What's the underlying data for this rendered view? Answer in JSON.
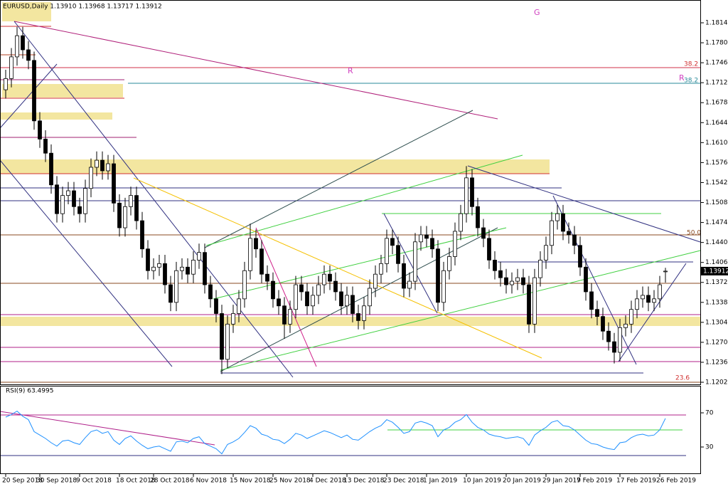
{
  "chart_data": [
    {
      "type": "candlestick",
      "title": "EURUSD,Daily  1.13910 1.13968 1.13717 1.13912",
      "categories": [
        "20 Sep 2018",
        null,
        null,
        null,
        null,
        null,
        "30 Sep 2018",
        null,
        null,
        null,
        null,
        null,
        null,
        "9 Oct 2018",
        null,
        null,
        null,
        null,
        null,
        null,
        "18 Oct 2018",
        null,
        null,
        null,
        null,
        null,
        "28 Oct 2018",
        null,
        null,
        null,
        null,
        null,
        null,
        "6 Nov 2018",
        null,
        null,
        null,
        null,
        null,
        null,
        "15 Nov 2018",
        null,
        null,
        null,
        null,
        null,
        null,
        "25 Nov 2018",
        null,
        null,
        null,
        null,
        null,
        null,
        "4 Dec 2018",
        null,
        null,
        null,
        null,
        null,
        "13 Dec 2018",
        null,
        null,
        null,
        null,
        null,
        null,
        "23 Dec 2018",
        null,
        null,
        null,
        null,
        null,
        null,
        "1 Jan 2019",
        null,
        null,
        null,
        null,
        null,
        null,
        "10 Jan 2019",
        null,
        null,
        null,
        null,
        null,
        null,
        "20 Jan 2019",
        null,
        null,
        null,
        null,
        null,
        null,
        "29 Jan 2019",
        null,
        null,
        null,
        null,
        null,
        "7 Feb 2019",
        null,
        null,
        null,
        null,
        null,
        null,
        "17 Feb 2019",
        null,
        null,
        null,
        null,
        null,
        null,
        "26 Feb 2019",
        null
      ],
      "open": [
        1.17,
        1.1719,
        1.1756,
        1.1792,
        1.1768,
        1.175,
        1.1647,
        1.1616,
        1.1592,
        1.1538,
        1.1489,
        1.152,
        1.1528,
        1.1501,
        1.1489,
        1.1532,
        1.1568,
        1.158,
        1.1562,
        1.1574,
        1.1507,
        1.1465,
        1.1501,
        1.152,
        1.1477,
        1.1429,
        1.1392,
        1.1398,
        1.1404,
        1.1368,
        1.1338,
        1.1392,
        1.1398,
        1.1386,
        1.141,
        1.1423,
        1.1368,
        1.1344,
        1.1319,
        1.1241,
        1.1301,
        1.1319,
        1.1344,
        1.1392,
        1.1447,
        1.1429,
        1.1386,
        1.1374,
        1.1344,
        1.1332,
        1.1301,
        1.1326,
        1.1368,
        1.1356,
        1.1332,
        1.135,
        1.1368,
        1.1386,
        1.1374,
        1.1356,
        1.1332,
        1.135,
        1.1319,
        1.1307,
        1.1332,
        1.1362,
        1.1386,
        1.1404,
        1.1447,
        1.1435,
        1.1404,
        1.1362,
        1.1374,
        1.1441,
        1.1453,
        1.1447,
        1.1429,
        1.1338,
        1.1392,
        1.1416,
        1.1459,
        1.1489,
        1.155,
        1.1501,
        1.1465,
        1.1447,
        1.141,
        1.1392,
        1.138,
        1.1368,
        1.1374,
        1.138,
        1.1368,
        1.1301,
        1.138,
        1.141,
        1.1435,
        1.1477,
        1.1489,
        1.1459,
        1.1453,
        1.1435,
        1.1398,
        1.1356,
        1.1326,
        1.1314,
        1.1289,
        1.1271,
        1.1253,
        1.1295,
        1.1301,
        1.1326,
        1.1344,
        1.135,
        1.1338,
        1.1344,
        1.1391
      ],
      "high": [
        1.1734,
        1.1771,
        1.1807,
        1.1807,
        1.1783,
        1.1765,
        1.1662,
        1.1631,
        1.1607,
        1.1553,
        1.1535,
        1.1543,
        1.1543,
        1.1516,
        1.1547,
        1.1583,
        1.1595,
        1.1595,
        1.1589,
        1.1589,
        1.1522,
        1.1516,
        1.1535,
        1.1535,
        1.1492,
        1.1444,
        1.1413,
        1.1419,
        1.1419,
        1.1383,
        1.1407,
        1.1413,
        1.1413,
        1.1425,
        1.1438,
        1.1438,
        1.1383,
        1.1359,
        1.1334,
        1.1316,
        1.1334,
        1.1359,
        1.1407,
        1.1472,
        1.1462,
        1.1444,
        1.1401,
        1.1389,
        1.1359,
        1.1347,
        1.1341,
        1.1383,
        1.1383,
        1.1371,
        1.1365,
        1.1383,
        1.1401,
        1.1401,
        1.1389,
        1.1371,
        1.1365,
        1.1365,
        1.1334,
        1.1347,
        1.1377,
        1.1401,
        1.1419,
        1.1462,
        1.1462,
        1.145,
        1.1419,
        1.1389,
        1.1456,
        1.1468,
        1.1468,
        1.1462,
        1.1444,
        1.1407,
        1.1431,
        1.1474,
        1.1504,
        1.157,
        1.1565,
        1.1516,
        1.148,
        1.1462,
        1.1425,
        1.1407,
        1.1395,
        1.1389,
        1.1395,
        1.1395,
        1.1383,
        1.1395,
        1.1425,
        1.145,
        1.1492,
        1.1504,
        1.1504,
        1.1474,
        1.1468,
        1.145,
        1.1413,
        1.1371,
        1.1341,
        1.1329,
        1.1304,
        1.1286,
        1.131,
        1.1316,
        1.1341,
        1.1359,
        1.1365,
        1.1365,
        1.1359,
        1.1383,
        1.13968
      ],
      "low": [
        1.1685,
        1.1704,
        1.1741,
        1.1753,
        1.1735,
        1.1632,
        1.1601,
        1.1577,
        1.1523,
        1.1474,
        1.1474,
        1.1505,
        1.1486,
        1.1474,
        1.1474,
        1.1517,
        1.1553,
        1.1547,
        1.1547,
        1.1492,
        1.145,
        1.145,
        1.1486,
        1.1462,
        1.1414,
        1.1377,
        1.1377,
        1.1383,
        1.1353,
        1.1323,
        1.1323,
        1.1377,
        1.1371,
        1.1371,
        1.1395,
        1.1353,
        1.1329,
        1.1304,
        1.1216,
        1.1226,
        1.1286,
        1.1304,
        1.1329,
        1.1377,
        1.1414,
        1.1371,
        1.1359,
        1.1329,
        1.1317,
        1.1276,
        1.1286,
        1.1311,
        1.1341,
        1.1317,
        1.1317,
        1.1335,
        1.1353,
        1.1359,
        1.1341,
        1.1317,
        1.1317,
        1.1304,
        1.1292,
        1.1292,
        1.1317,
        1.1347,
        1.1371,
        1.1389,
        1.142,
        1.1389,
        1.1347,
        1.1347,
        1.1359,
        1.1426,
        1.1432,
        1.1414,
        1.1323,
        1.1323,
        1.1377,
        1.1401,
        1.1444,
        1.1474,
        1.1486,
        1.145,
        1.1432,
        1.1395,
        1.1377,
        1.1365,
        1.1353,
        1.1353,
        1.1359,
        1.1353,
        1.1286,
        1.1286,
        1.1365,
        1.1395,
        1.142,
        1.1462,
        1.1444,
        1.1438,
        1.142,
        1.1383,
        1.1341,
        1.1311,
        1.1299,
        1.1274,
        1.1256,
        1.1234,
        1.1238,
        1.128,
        1.1286,
        1.1311,
        1.1329,
        1.1323,
        1.1323,
        1.1329,
        1.13717
      ],
      "close": [
        1.1719,
        1.1756,
        1.1792,
        1.1768,
        1.175,
        1.1647,
        1.1616,
        1.1592,
        1.1538,
        1.1489,
        1.152,
        1.1528,
        1.1501,
        1.1489,
        1.1532,
        1.1568,
        1.158,
        1.1562,
        1.1574,
        1.1507,
        1.1465,
        1.1501,
        1.152,
        1.1477,
        1.1429,
        1.1392,
        1.1398,
        1.1404,
        1.1368,
        1.1338,
        1.1392,
        1.1398,
        1.1386,
        1.141,
        1.1423,
        1.1368,
        1.1344,
        1.1319,
        1.1241,
        1.1301,
        1.1319,
        1.1344,
        1.1392,
        1.1447,
        1.1429,
        1.1386,
        1.1374,
        1.1344,
        1.1332,
        1.1301,
        1.1326,
        1.1368,
        1.1356,
        1.1332,
        1.135,
        1.1368,
        1.1386,
        1.1374,
        1.1356,
        1.1332,
        1.135,
        1.1319,
        1.1307,
        1.1332,
        1.1362,
        1.1386,
        1.1404,
        1.1447,
        1.1435,
        1.1404,
        1.1362,
        1.1374,
        1.1441,
        1.1453,
        1.1447,
        1.1429,
        1.1338,
        1.1392,
        1.1416,
        1.1459,
        1.1489,
        1.155,
        1.1501,
        1.1465,
        1.1447,
        1.141,
        1.1392,
        1.138,
        1.1368,
        1.1374,
        1.138,
        1.1368,
        1.1301,
        1.138,
        1.141,
        1.1435,
        1.1477,
        1.1489,
        1.1459,
        1.1453,
        1.1435,
        1.1398,
        1.1356,
        1.1326,
        1.1314,
        1.1289,
        1.1271,
        1.1253,
        1.1295,
        1.1301,
        1.1326,
        1.1344,
        1.135,
        1.1338,
        1.1344,
        1.1368,
        1.13912
      ],
      "ylim": [
        1.11984,
        1.18528
      ],
      "yticks": [
        {
          "value": 1.1814,
          "label": "1.18140"
        },
        {
          "value": 1.178,
          "label": "1.17800"
        },
        {
          "value": 1.1746,
          "label": "1.17460"
        },
        {
          "value": 1.1712,
          "label": "1.17120"
        },
        {
          "value": 1.1678,
          "label": "1.16780"
        },
        {
          "value": 1.1644,
          "label": "1.16440"
        },
        {
          "value": 1.161,
          "label": "1.16100"
        },
        {
          "value": 1.1576,
          "label": "1.15760"
        },
        {
          "value": 1.1542,
          "label": "1.15420"
        },
        {
          "value": 1.1508,
          "label": "1.15080"
        },
        {
          "value": 1.1474,
          "label": "1.14740"
        },
        {
          "value": 1.144,
          "label": "1.14400"
        },
        {
          "value": 1.1406,
          "label": "1.14060"
        },
        {
          "value": 1.1372,
          "label": "1.13720"
        },
        {
          "value": 1.1338,
          "label": "1.13380"
        },
        {
          "value": 1.1304,
          "label": "1.13040"
        },
        {
          "value": 1.127,
          "label": "1.12700"
        },
        {
          "value": 1.1236,
          "label": "1.12360"
        },
        {
          "value": 1.1202,
          "label": "1.12020"
        }
      ],
      "annotations": [
        "38.2",
        "38.2",
        "50.0",
        "23.6",
        "R",
        "R",
        "G"
      ]
    },
    {
      "type": "line",
      "title": "RSI(9) 63.4995",
      "color": "#1e90ff",
      "values": [
        65,
        68,
        72,
        66,
        62,
        48,
        44,
        40,
        35,
        31,
        37,
        38,
        35,
        33,
        41,
        48,
        50,
        46,
        48,
        38,
        33,
        40,
        43,
        37,
        32,
        28,
        30,
        31,
        28,
        25,
        36,
        37,
        35,
        40,
        42,
        34,
        31,
        28,
        22,
        33,
        36,
        40,
        47,
        55,
        52,
        45,
        43,
        39,
        38,
        34,
        39,
        46,
        44,
        40,
        43,
        46,
        49,
        47,
        44,
        41,
        44,
        39,
        38,
        43,
        48,
        52,
        55,
        62,
        59,
        53,
        46,
        48,
        58,
        60,
        58,
        55,
        42,
        50,
        53,
        59,
        62,
        68,
        59,
        53,
        50,
        45,
        43,
        42,
        40,
        41,
        42,
        40,
        32,
        44,
        49,
        53,
        59,
        61,
        55,
        54,
        50,
        44,
        38,
        34,
        33,
        30,
        28,
        27,
        35,
        36,
        41,
        44,
        45,
        43,
        44,
        50,
        63.4995
      ],
      "ylim": [
        0,
        100
      ],
      "yticks": [
        70,
        30
      ]
    }
  ]
}
